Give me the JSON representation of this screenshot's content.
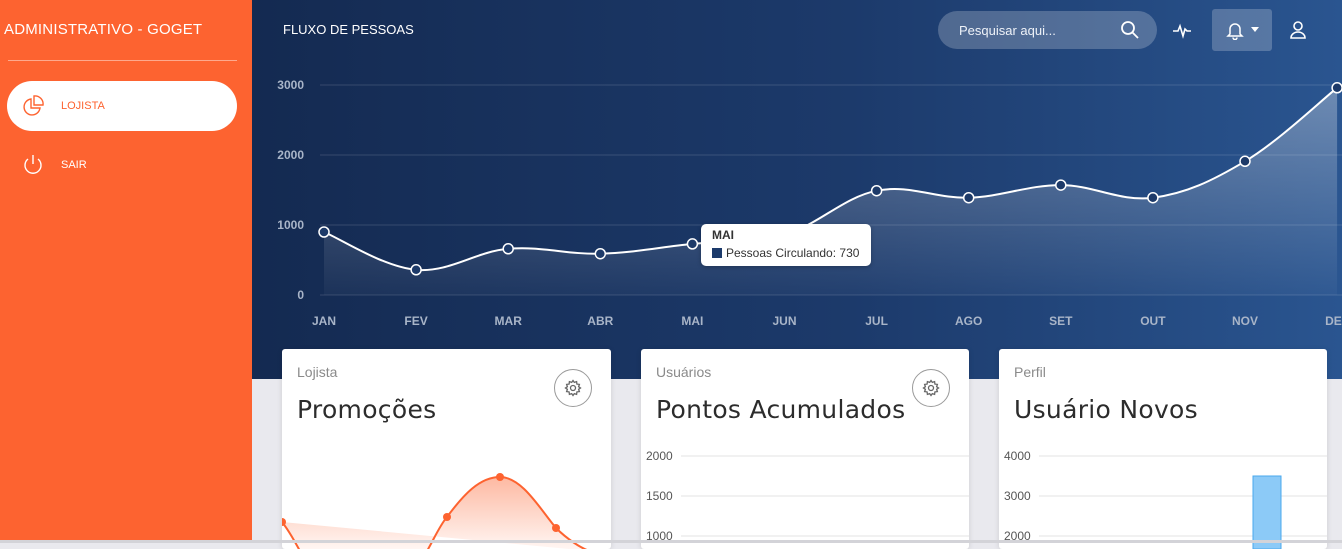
{
  "sidebar": {
    "brand": "ADMINISTRATIVO - GOGET",
    "items": [
      {
        "label": "LOJISTA",
        "icon": "pie-chart-icon",
        "active": true
      },
      {
        "label": "SAIR",
        "icon": "power-icon",
        "active": false
      }
    ]
  },
  "header": {
    "title": "FLUXO DE PESSOAS",
    "search_placeholder": "Pesquisar aqui...",
    "icons": [
      "search-icon",
      "activity-icon",
      "bell-icon",
      "user-icon"
    ]
  },
  "chart_data": [
    {
      "type": "line",
      "categories": [
        "JAN",
        "FEV",
        "MAR",
        "ABR",
        "MAI",
        "JUN",
        "JUL",
        "AGO",
        "SET",
        "OUT",
        "NOV",
        "DEZ"
      ],
      "series": [
        {
          "name": "Pessoas Circulando",
          "values": [
            900,
            360,
            660,
            590,
            730,
            860,
            1490,
            1390,
            1570,
            1390,
            1910,
            2960
          ]
        }
      ],
      "y_ticks": [
        "3000",
        "2000",
        "1000",
        "0"
      ],
      "ylim": [
        0,
        3000
      ],
      "grid": true,
      "tooltip": {
        "title": "MAI",
        "label": "Pessoas Circulando: 730",
        "index": 4
      }
    },
    {
      "type": "area",
      "title": "Promoções",
      "categories": [],
      "values": []
    },
    {
      "type": "line",
      "title": "Pontos Acumulados",
      "y_ticks": [
        "2000",
        "1500",
        "1000"
      ],
      "ylim": [
        1000,
        2000
      ]
    },
    {
      "type": "bar",
      "title": "Usuário Novos",
      "y_ticks": [
        "4000",
        "3000",
        "2000"
      ],
      "ylim": [
        2000,
        4000
      ],
      "values": [
        3500
      ]
    }
  ],
  "cards": [
    {
      "category": "Lojista",
      "title": "Promoções",
      "has_gear": true
    },
    {
      "category": "Usuários",
      "title": "Pontos Acumulados",
      "has_gear": true
    },
    {
      "category": "Perfil",
      "title": "Usuário Novos",
      "has_gear": false
    }
  ],
  "colors": {
    "accent": "#fd6330",
    "hero_dark": "#142a51",
    "hero_light": "#2a5590",
    "bar": "#8ccaf7"
  }
}
